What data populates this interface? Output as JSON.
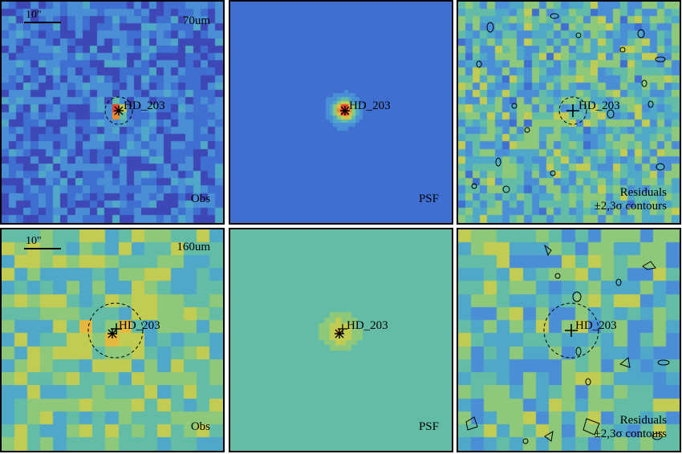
{
  "figure": {
    "rows": [
      {
        "band": "70um",
        "panels": [
          {
            "kind": "obs",
            "corner_label": "Obs",
            "band_label": "70um",
            "scalebar": "10\"",
            "source_label": "HD_203",
            "palette": "blue",
            "seed": 11
          },
          {
            "kind": "psf",
            "corner_label": "PSF",
            "source_label": "HD_203",
            "palette": "blue",
            "seed": 12
          },
          {
            "kind": "res",
            "corner_label_1": "Residuals",
            "corner_label_2": "±2,3σ contours",
            "source_label": "HD_203",
            "palette": "mixed",
            "seed": 13
          }
        ]
      },
      {
        "band": "160um",
        "panels": [
          {
            "kind": "obs",
            "corner_label": "Obs",
            "band_label": "160um",
            "scalebar": "10\"",
            "source_label": "HD_203",
            "palette": "green",
            "seed": 21
          },
          {
            "kind": "psf",
            "corner_label": "PSF",
            "source_label": "HD_203",
            "palette": "green",
            "seed": 22
          },
          {
            "kind": "res",
            "corner_label_1": "Residuals",
            "corner_label_2": "±2,3σ contours",
            "source_label": "HD_203",
            "palette": "mixed",
            "seed": 23
          }
        ]
      }
    ],
    "colormap": [
      "#3b1d8f",
      "#3d47b5",
      "#3f6fd0",
      "#4a8fd6",
      "#4fa8c8",
      "#63bda6",
      "#8ec87a",
      "#c2cc52",
      "#e6b83e",
      "#f08a2e",
      "#e8432a"
    ]
  }
}
